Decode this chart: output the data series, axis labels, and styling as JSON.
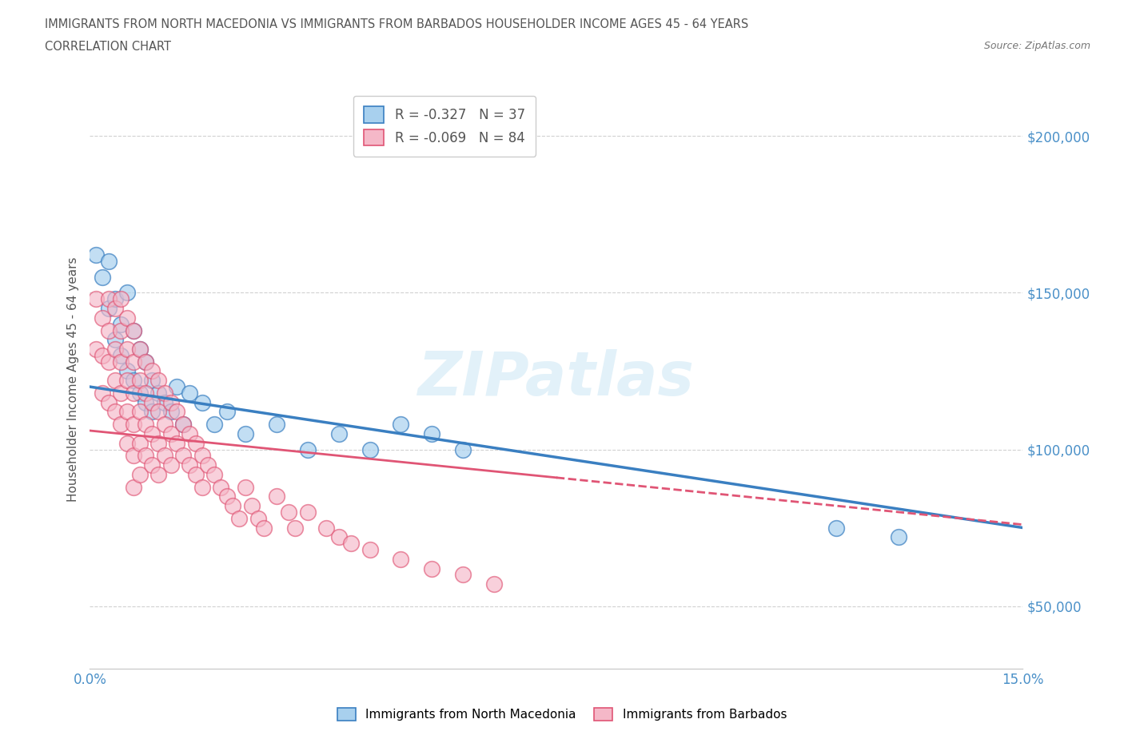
{
  "title_line1": "IMMIGRANTS FROM NORTH MACEDONIA VS IMMIGRANTS FROM BARBADOS HOUSEHOLDER INCOME AGES 45 - 64 YEARS",
  "title_line2": "CORRELATION CHART",
  "source_text": "Source: ZipAtlas.com",
  "ylabel": "Householder Income Ages 45 - 64 years",
  "xlim": [
    0.0,
    0.15
  ],
  "ylim": [
    30000,
    215000
  ],
  "yticks": [
    50000,
    100000,
    150000,
    200000
  ],
  "ytick_labels": [
    "$50,000",
    "$100,000",
    "$150,000",
    "$200,000"
  ],
  "xticks": [
    0.0,
    0.025,
    0.05,
    0.075,
    0.1,
    0.125,
    0.15
  ],
  "watermark": "ZIPatlas",
  "legend_macedonian_r": "R = -0.327",
  "legend_macedonian_n": "N = 37",
  "legend_barbados_r": "R = -0.069",
  "legend_barbados_n": "N = 84",
  "color_macedonian": "#a8d0ee",
  "color_barbados": "#f5b8c8",
  "color_macedonian_line": "#3a7fc1",
  "color_barbados_line": "#e05575",
  "background_color": "#ffffff",
  "macedonian_x": [
    0.001,
    0.002,
    0.003,
    0.003,
    0.004,
    0.004,
    0.005,
    0.005,
    0.006,
    0.006,
    0.007,
    0.007,
    0.008,
    0.008,
    0.009,
    0.009,
    0.01,
    0.01,
    0.011,
    0.012,
    0.013,
    0.014,
    0.015,
    0.016,
    0.018,
    0.02,
    0.022,
    0.025,
    0.03,
    0.035,
    0.04,
    0.045,
    0.05,
    0.055,
    0.06,
    0.12,
    0.13
  ],
  "macedonian_y": [
    162000,
    155000,
    145000,
    160000,
    148000,
    135000,
    140000,
    130000,
    150000,
    125000,
    138000,
    122000,
    132000,
    118000,
    128000,
    115000,
    122000,
    112000,
    118000,
    115000,
    112000,
    120000,
    108000,
    118000,
    115000,
    108000,
    112000,
    105000,
    108000,
    100000,
    105000,
    100000,
    108000,
    105000,
    100000,
    75000,
    72000
  ],
  "barbados_x": [
    0.001,
    0.001,
    0.002,
    0.002,
    0.002,
    0.003,
    0.003,
    0.003,
    0.003,
    0.004,
    0.004,
    0.004,
    0.004,
    0.005,
    0.005,
    0.005,
    0.005,
    0.005,
    0.006,
    0.006,
    0.006,
    0.006,
    0.006,
    0.007,
    0.007,
    0.007,
    0.007,
    0.007,
    0.007,
    0.008,
    0.008,
    0.008,
    0.008,
    0.008,
    0.009,
    0.009,
    0.009,
    0.009,
    0.01,
    0.01,
    0.01,
    0.01,
    0.011,
    0.011,
    0.011,
    0.011,
    0.012,
    0.012,
    0.012,
    0.013,
    0.013,
    0.013,
    0.014,
    0.014,
    0.015,
    0.015,
    0.016,
    0.016,
    0.017,
    0.017,
    0.018,
    0.018,
    0.019,
    0.02,
    0.021,
    0.022,
    0.023,
    0.024,
    0.025,
    0.026,
    0.027,
    0.028,
    0.03,
    0.032,
    0.033,
    0.035,
    0.038,
    0.04,
    0.042,
    0.045,
    0.05,
    0.055,
    0.06,
    0.065
  ],
  "barbados_y": [
    148000,
    132000,
    142000,
    130000,
    118000,
    148000,
    138000,
    128000,
    115000,
    145000,
    132000,
    122000,
    112000,
    148000,
    138000,
    128000,
    118000,
    108000,
    142000,
    132000,
    122000,
    112000,
    102000,
    138000,
    128000,
    118000,
    108000,
    98000,
    88000,
    132000,
    122000,
    112000,
    102000,
    92000,
    128000,
    118000,
    108000,
    98000,
    125000,
    115000,
    105000,
    95000,
    122000,
    112000,
    102000,
    92000,
    118000,
    108000,
    98000,
    115000,
    105000,
    95000,
    112000,
    102000,
    108000,
    98000,
    105000,
    95000,
    102000,
    92000,
    98000,
    88000,
    95000,
    92000,
    88000,
    85000,
    82000,
    78000,
    88000,
    82000,
    78000,
    75000,
    85000,
    80000,
    75000,
    80000,
    75000,
    72000,
    70000,
    68000,
    65000,
    62000,
    60000,
    57000
  ],
  "mac_trend_x0": 0.0,
  "mac_trend_y0": 120000,
  "mac_trend_x1": 0.15,
  "mac_trend_y1": 75000,
  "bar_trend_x0": 0.0,
  "bar_trend_y0": 106000,
  "bar_trend_x1": 0.075,
  "bar_trend_y1": 91000
}
